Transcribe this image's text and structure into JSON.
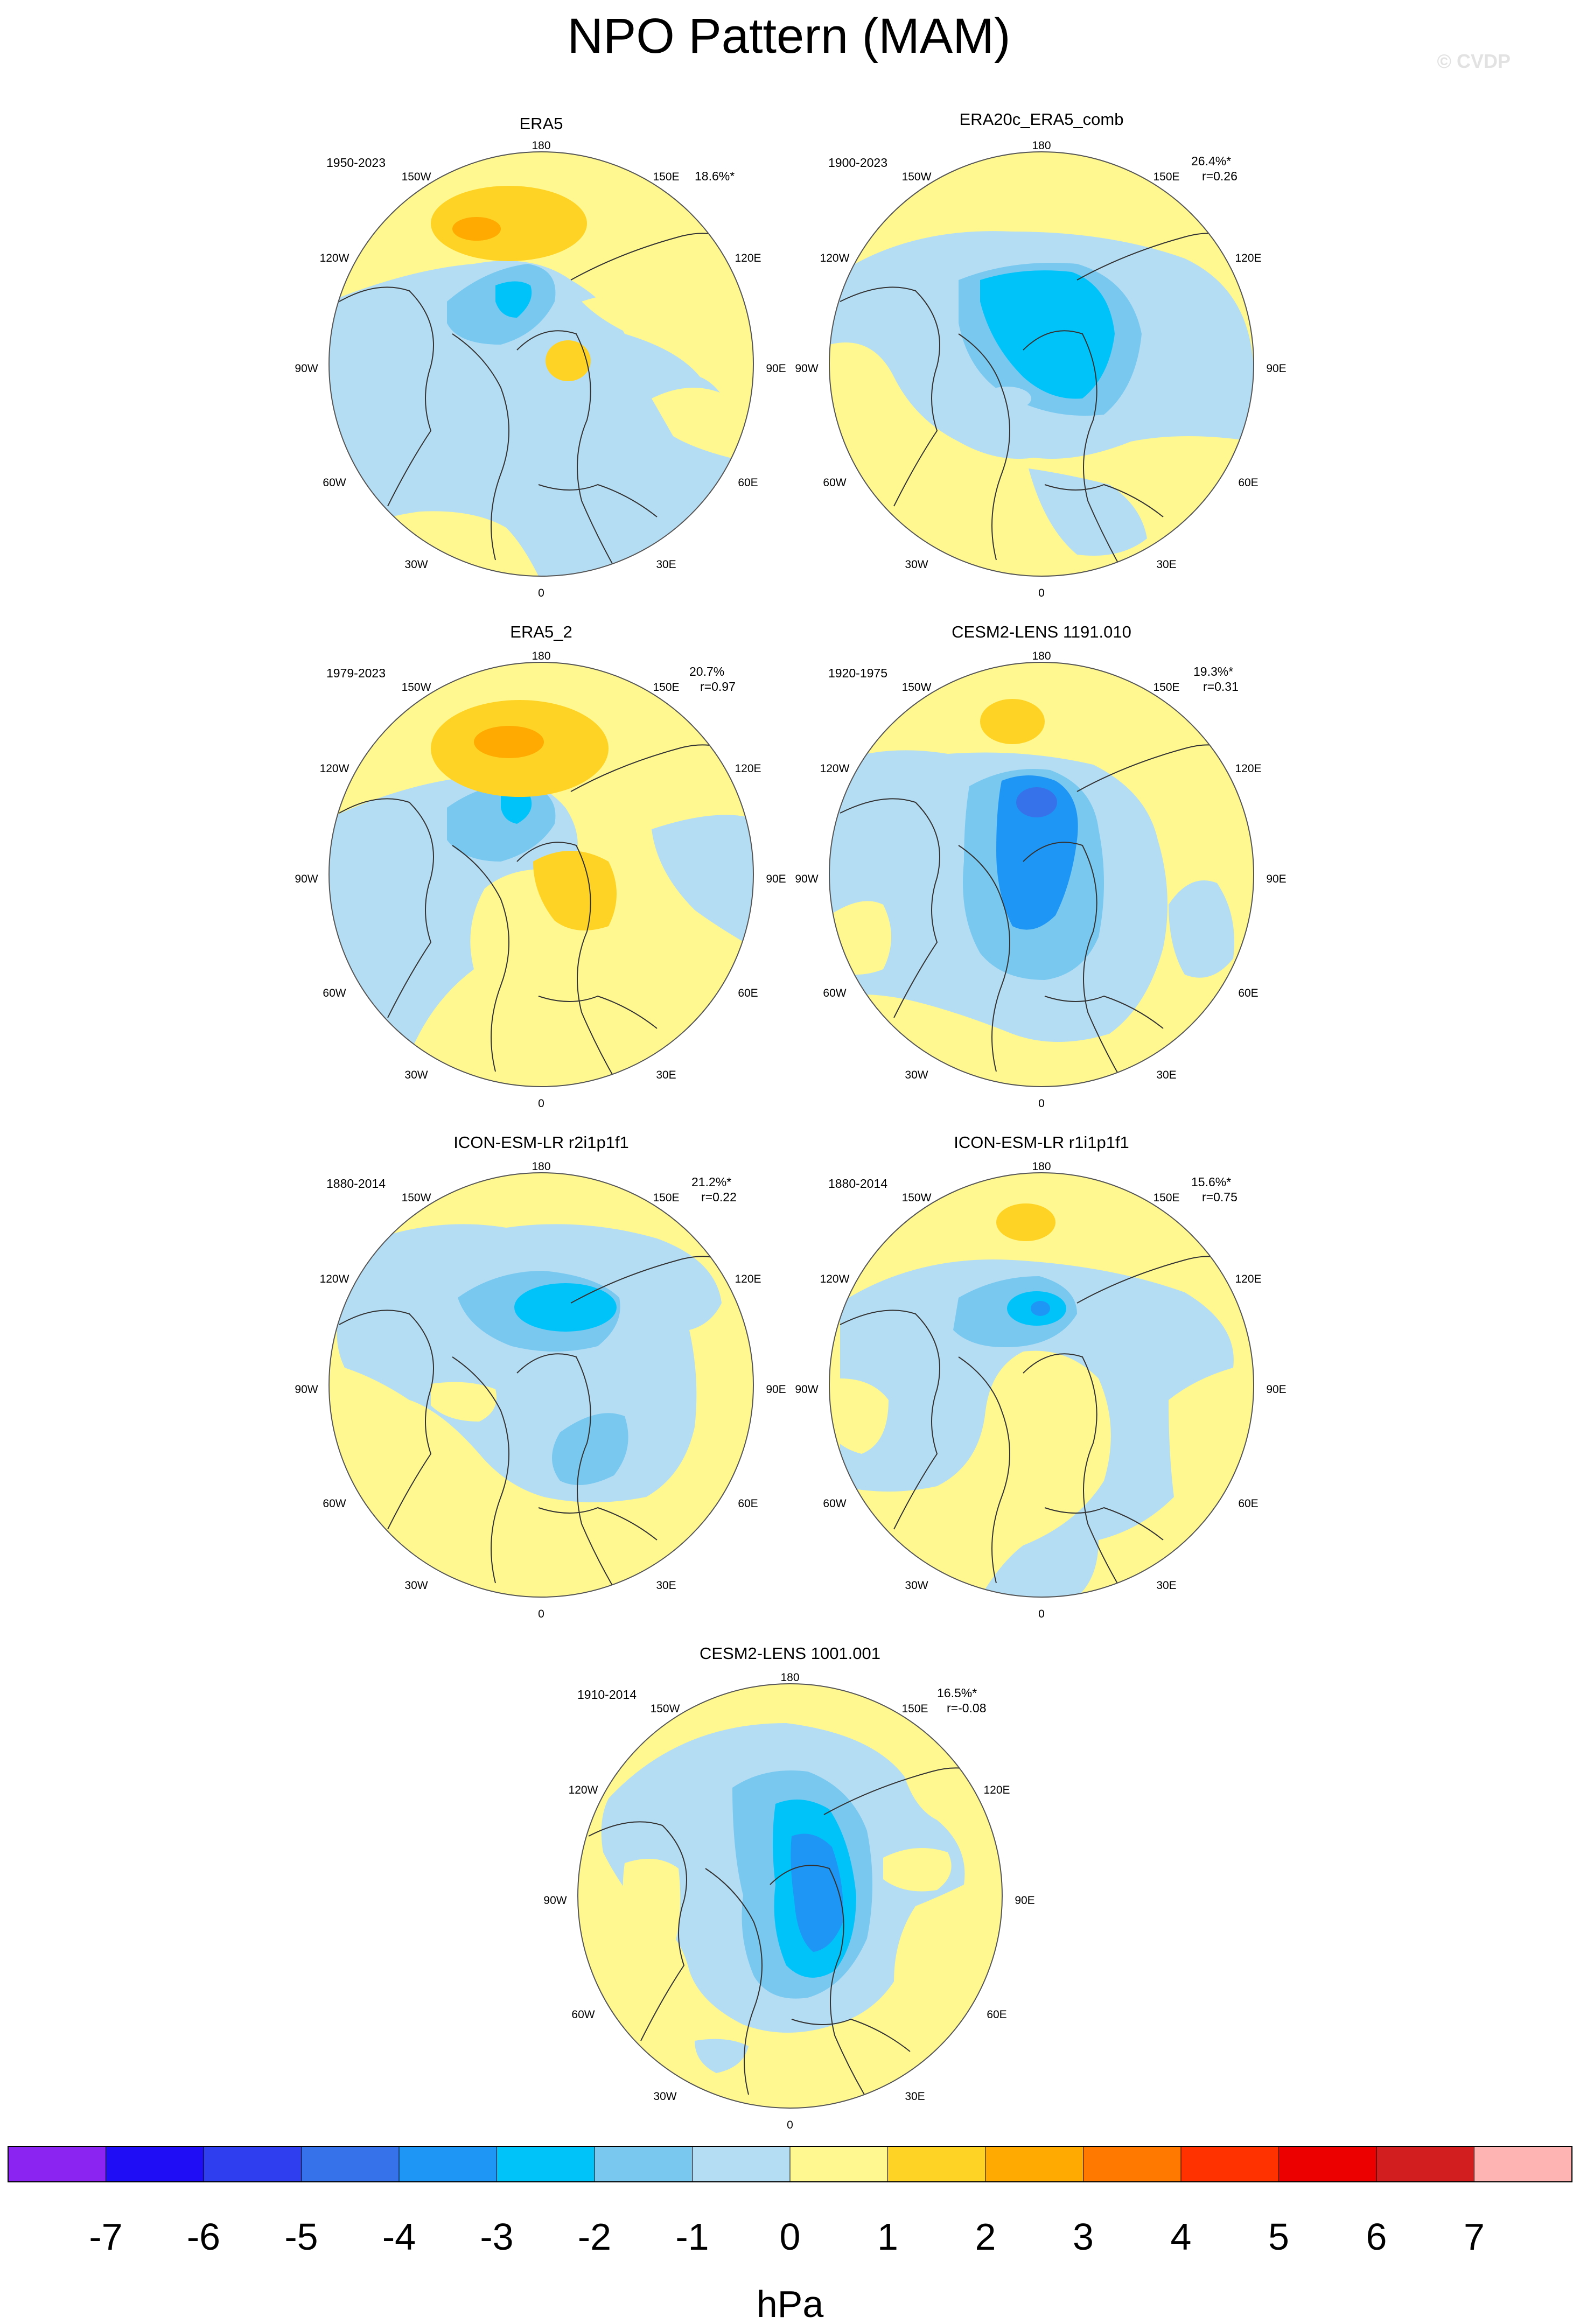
{
  "title": "NPO Pattern (MAM)",
  "watermark": "© CVDP",
  "lon_labels": [
    "180",
    "150E",
    "120E",
    "90E",
    "60E",
    "30E",
    "0",
    "30W",
    "60W",
    "90W",
    "120W",
    "150W"
  ],
  "panels": [
    {
      "name": "ERA5",
      "years": "1950-2023",
      "pct": "18.6%*",
      "r": ""
    },
    {
      "name": "ERA20c_ERA5_comb",
      "years": "1900-2023",
      "pct": "26.4%*",
      "r": "r=0.26"
    },
    {
      "name": "ERA5_2",
      "years": "1979-2023",
      "pct": "20.7%",
      "r": "r=0.97"
    },
    {
      "name": "CESM2-LENS 1191.010",
      "years": "1920-1975",
      "pct": "19.3%*",
      "r": "r=0.31"
    },
    {
      "name": "ICON-ESM-LR r2i1p1f1",
      "years": "1880-2014",
      "pct": "21.2%*",
      "r": "r=0.22"
    },
    {
      "name": "ICON-ESM-LR r1i1p1f1",
      "years": "1880-2014",
      "pct": "15.6%*",
      "r": "r=0.75"
    },
    {
      "name": "CESM2-LENS 1001.001",
      "years": "1910-2014",
      "pct": "16.5%*",
      "r": "r=-0.08"
    }
  ],
  "colorbar": {
    "unit": "hPa",
    "tick_labels": [
      "-7",
      "-6",
      "-5",
      "-4",
      "-3",
      "-2",
      "-1",
      "0",
      "1",
      "2",
      "3",
      "4",
      "5",
      "6",
      "7"
    ],
    "colors": [
      "#8b24f0",
      "#1e0df5",
      "#2f3ff0",
      "#3673ea",
      "#1e96f5",
      "#00c3fa",
      "#78c8f0",
      "#b4ddf4",
      "#fff890",
      "#ffd326",
      "#ffaa00",
      "#ff7800",
      "#ff3200",
      "#ed0000",
      "#d21e1e",
      "#ffb4b4"
    ]
  }
}
